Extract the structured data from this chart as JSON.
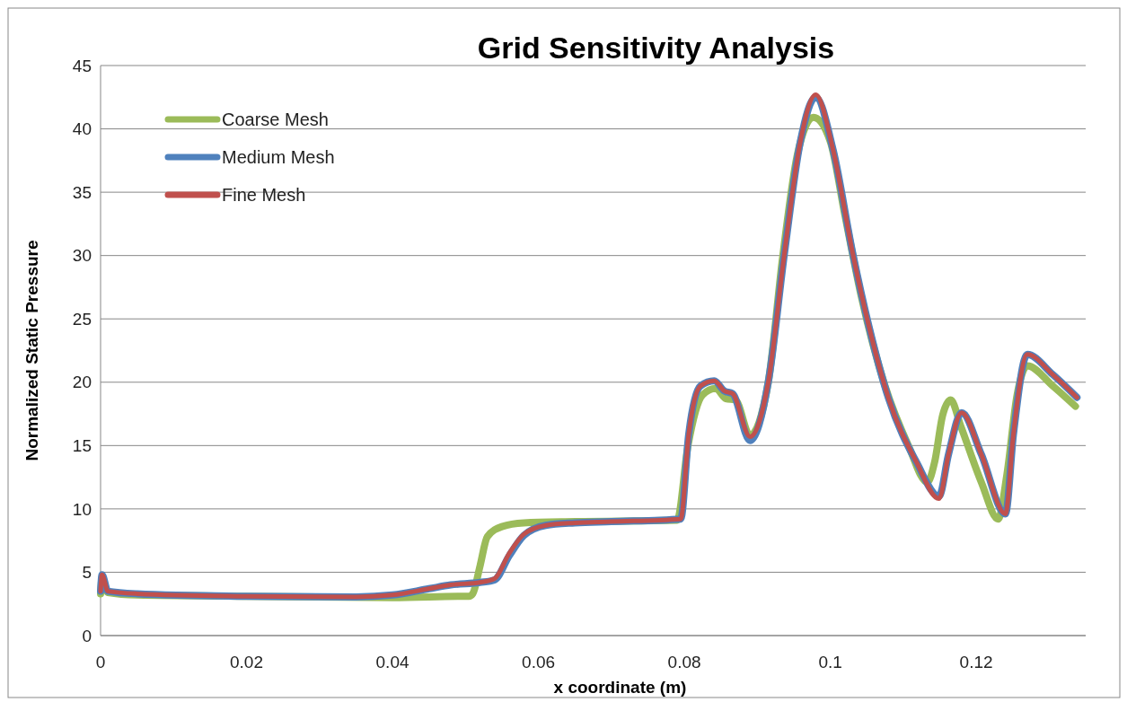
{
  "chart_data": {
    "type": "line",
    "title": "Grid Sensitivity Analysis",
    "xlabel": "x coordinate (m)",
    "ylabel": "Normalized Static Pressure",
    "xlim": [
      0,
      0.135
    ],
    "xticks": [
      0,
      0.02,
      0.04,
      0.06,
      0.08,
      0.1,
      0.12
    ],
    "ylim": [
      0,
      45
    ],
    "yticks": [
      0,
      5,
      10,
      15,
      20,
      25,
      30,
      35,
      40,
      45
    ],
    "grid": "y",
    "legend": "top left",
    "marker": "none",
    "line_style": "solid",
    "series": [
      {
        "name": "Coarse Mesh",
        "color": "#9bbb59",
        "x": [
          0,
          0.0002,
          0.001,
          0.005,
          0.02,
          0.04,
          0.05,
          0.0505,
          0.051,
          0.052,
          0.053,
          0.055,
          0.058,
          0.065,
          0.079,
          0.0805,
          0.0825,
          0.0843,
          0.0857,
          0.087,
          0.089,
          0.0915,
          0.0935,
          0.0955,
          0.0977,
          0.1,
          0.102,
          0.1042,
          0.1075,
          0.1107,
          0.1133,
          0.1143,
          0.1154,
          0.1165,
          0.1179,
          0.1207,
          0.123,
          0.1242,
          0.1256,
          0.127,
          0.1305,
          0.1336
        ],
        "values": [
          3.3,
          4.5,
          3.4,
          3.2,
          3.1,
          3.0,
          3.1,
          3.1,
          3.3,
          5.5,
          7.8,
          8.6,
          8.9,
          9.0,
          9.1,
          15,
          19,
          19.5,
          18.7,
          18.6,
          15.8,
          20,
          30,
          38,
          40.9,
          39,
          33.2,
          26.9,
          19.7,
          15,
          12.1,
          13.7,
          17.4,
          18.6,
          16.5,
          12.1,
          9.2,
          12.7,
          19,
          21.3,
          19.7,
          18.1
        ]
      },
      {
        "name": "Medium Mesh",
        "color": "#4f81bd",
        "x": [
          0,
          0.0002,
          0.001,
          0.005,
          0.02,
          0.035,
          0.04,
          0.045,
          0.048,
          0.052,
          0.054,
          0.056,
          0.058,
          0.061,
          0.065,
          0.07,
          0.0795,
          0.0806,
          0.0822,
          0.0841,
          0.0855,
          0.0866,
          0.089,
          0.0915,
          0.0937,
          0.0959,
          0.098,
          0.1004,
          0.1031,
          0.1053,
          0.108,
          0.1118,
          0.1149,
          0.1162,
          0.118,
          0.1207,
          0.124,
          0.1251,
          0.127,
          0.1305,
          0.1338
        ],
        "values": [
          3.5,
          4.8,
          3.5,
          3.3,
          3.1,
          3.05,
          3.2,
          3.7,
          4.0,
          4.2,
          4.4,
          6.3,
          7.9,
          8.7,
          8.9,
          9.0,
          9.2,
          15.9,
          19.7,
          20.1,
          19.3,
          19.1,
          15.4,
          20,
          30.1,
          39,
          42.5,
          38.3,
          30.1,
          24.4,
          18.7,
          13.7,
          11.0,
          14.3,
          17.6,
          14.3,
          9.6,
          15.9,
          22.2,
          20.6,
          18.8
        ]
      },
      {
        "name": "Fine Mesh",
        "color": "#c0504d",
        "x": [
          0,
          0.0002,
          0.001,
          0.005,
          0.02,
          0.035,
          0.04,
          0.045,
          0.048,
          0.052,
          0.054,
          0.056,
          0.058,
          0.061,
          0.065,
          0.07,
          0.0795,
          0.0806,
          0.0822,
          0.0841,
          0.0855,
          0.0866,
          0.089,
          0.0915,
          0.0937,
          0.0959,
          0.098,
          0.1004,
          0.1031,
          0.1053,
          0.108,
          0.1118,
          0.1149,
          0.1162,
          0.118,
          0.1207,
          0.124,
          0.1251,
          0.127,
          0.1305,
          0.1338
        ],
        "values": [
          3.5,
          4.8,
          3.5,
          3.3,
          3.1,
          3.05,
          3.2,
          3.7,
          4.0,
          4.2,
          4.5,
          6.5,
          8.0,
          8.7,
          8.9,
          9.0,
          9.2,
          15.9,
          19.7,
          20.1,
          19.3,
          19.1,
          15.7,
          20,
          30.1,
          39,
          42.7,
          38.3,
          30.1,
          24.4,
          18.7,
          13.7,
          10.8,
          14.3,
          17.6,
          14.3,
          9.6,
          15.9,
          22.2,
          20.6,
          18.8
        ]
      }
    ]
  }
}
